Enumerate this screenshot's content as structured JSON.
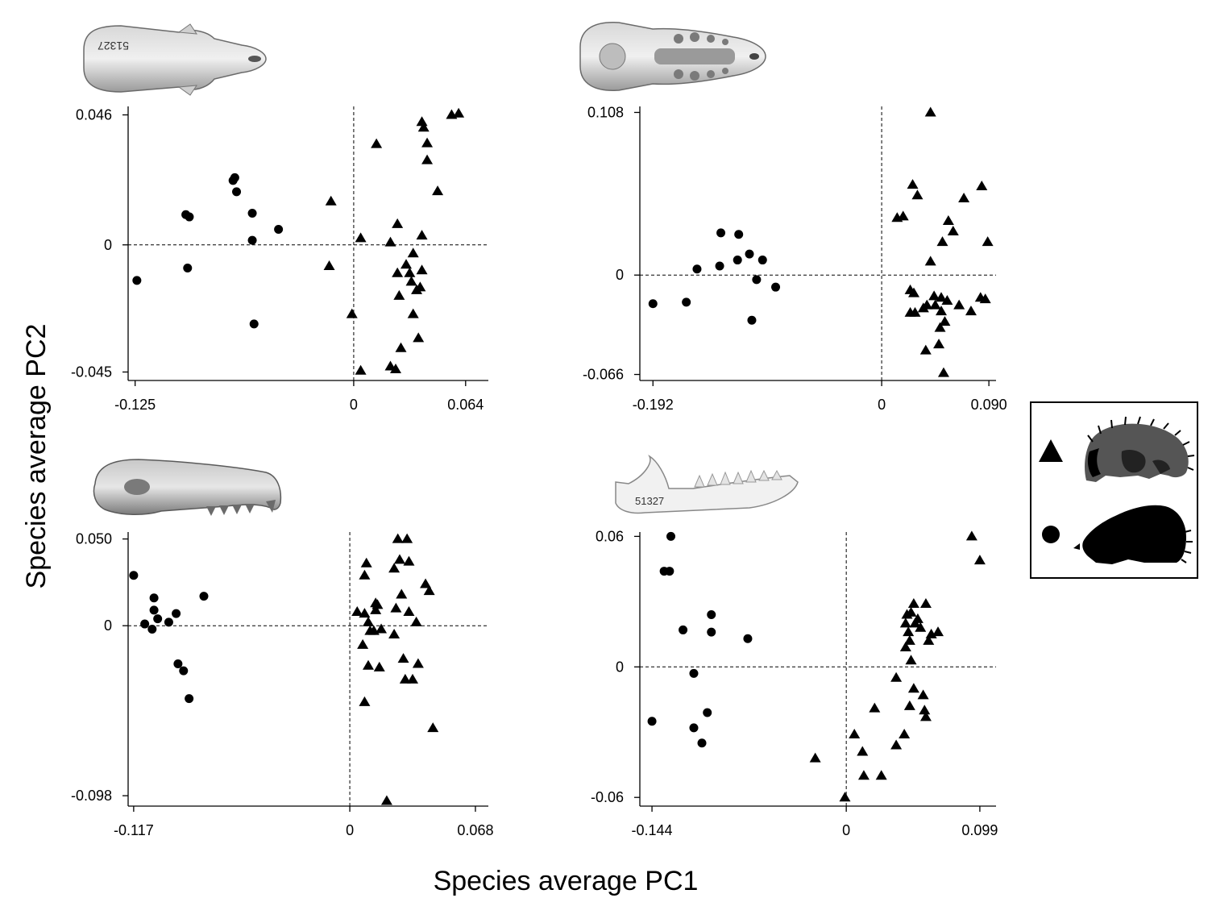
{
  "figure": {
    "xlabel": "Species average PC1",
    "ylabel": "Species average PC2"
  },
  "legend": {
    "placement": "right",
    "entries": [
      {
        "marker": "triangle",
        "icon": "furry-shrew-silhouette-icon",
        "color": "#555555"
      },
      {
        "marker": "circle",
        "icon": "mole-silhouette-icon",
        "color": "#000000"
      }
    ]
  },
  "skull_views": [
    {
      "panel": 0,
      "icon": "skull-dorsal-view-icon",
      "label": "51327"
    },
    {
      "panel": 1,
      "icon": "skull-ventral-view-icon",
      "label": ""
    },
    {
      "panel": 2,
      "icon": "skull-lateral-view-icon",
      "label": ""
    },
    {
      "panel": 3,
      "icon": "mandible-view-icon",
      "label": "51327"
    }
  ],
  "chart_data": [
    {
      "type": "scatter",
      "xlim": [
        -0.129,
        0.077
      ],
      "ylim": [
        -0.048,
        0.049
      ],
      "xticks": [
        {
          "v": -0.125,
          "label": "-0.125"
        },
        {
          "v": 0,
          "label": "0"
        },
        {
          "v": 0.064,
          "label": "0.064"
        }
      ],
      "yticks": [
        {
          "v": 0.046,
          "label": "0.046"
        },
        {
          "v": 0,
          "label": "0"
        },
        {
          "v": -0.045,
          "label": "-0.045"
        }
      ],
      "series": [
        {
          "marker": "circle",
          "points": [
            [
              -0.124,
              -0.0126
            ],
            [
              -0.096,
              0.0107
            ],
            [
              -0.094,
              0.0099
            ],
            [
              -0.095,
              -0.0082
            ],
            [
              -0.069,
              0.0228
            ],
            [
              -0.068,
              0.0238
            ],
            [
              -0.067,
              0.0188
            ],
            [
              -0.058,
              0.0112
            ],
            [
              -0.058,
              0.0016
            ],
            [
              -0.057,
              -0.028
            ],
            [
              -0.043,
              0.0055
            ]
          ]
        },
        {
          "marker": "triangle",
          "points": [
            [
              -0.013,
              0.0154
            ],
            [
              -0.014,
              -0.0075
            ],
            [
              -0.001,
              -0.0245
            ],
            [
              0.004,
              0.0024
            ],
            [
              0.004,
              -0.0445
            ],
            [
              0.013,
              0.0357
            ],
            [
              0.021,
              -0.043
            ],
            [
              0.021,
              0.0009
            ],
            [
              0.024,
              -0.044
            ],
            [
              0.025,
              0.0074
            ],
            [
              0.025,
              -0.01
            ],
            [
              0.026,
              -0.018
            ],
            [
              0.027,
              -0.0365
            ],
            [
              0.03,
              -0.007
            ],
            [
              0.032,
              -0.01
            ],
            [
              0.033,
              -0.013
            ],
            [
              0.034,
              -0.003
            ],
            [
              0.034,
              -0.0245
            ],
            [
              0.036,
              -0.016
            ],
            [
              0.037,
              -0.033
            ],
            [
              0.038,
              -0.015
            ],
            [
              0.039,
              -0.009
            ],
            [
              0.039,
              0.0033
            ],
            [
              0.039,
              0.0435
            ],
            [
              0.04,
              0.0415
            ],
            [
              0.042,
              0.036
            ],
            [
              0.042,
              0.03
            ],
            [
              0.048,
              0.019
            ],
            [
              0.056,
              0.046
            ],
            [
              0.06,
              0.0465
            ]
          ]
        }
      ]
    },
    {
      "type": "scatter",
      "xlim": [
        -0.203,
        0.096
      ],
      "ylim": [
        -0.07,
        0.112
      ],
      "xticks": [
        {
          "v": -0.192,
          "label": "-0.192"
        },
        {
          "v": 0,
          "label": "0"
        },
        {
          "v": 0.09,
          "label": "0.090"
        }
      ],
      "yticks": [
        {
          "v": 0.108,
          "label": "0.108"
        },
        {
          "v": 0,
          "label": "0"
        },
        {
          "v": -0.066,
          "label": "-0.066"
        }
      ],
      "series": [
        {
          "marker": "circle",
          "points": [
            [
              -0.192,
              -0.019
            ],
            [
              -0.164,
              -0.018
            ],
            [
              -0.155,
              0.004
            ],
            [
              -0.135,
              0.028
            ],
            [
              -0.136,
              0.006
            ],
            [
              -0.12,
              0.027
            ],
            [
              -0.121,
              0.01
            ],
            [
              -0.111,
              0.014
            ],
            [
              -0.109,
              -0.03
            ],
            [
              -0.105,
              -0.003
            ],
            [
              -0.1,
              0.01
            ],
            [
              -0.089,
              -0.008
            ]
          ]
        },
        {
          "marker": "triangle",
          "points": [
            [
              0.013,
              0.038
            ],
            [
              0.018,
              0.039
            ],
            [
              0.024,
              -0.01
            ],
            [
              0.024,
              -0.025
            ],
            [
              0.026,
              0.06
            ],
            [
              0.027,
              -0.012
            ],
            [
              0.028,
              -0.025
            ],
            [
              0.03,
              0.053
            ],
            [
              0.035,
              -0.022
            ],
            [
              0.037,
              -0.05
            ],
            [
              0.038,
              -0.02
            ],
            [
              0.041,
              0.009
            ],
            [
              0.041,
              0.108
            ],
            [
              0.044,
              -0.014
            ],
            [
              0.045,
              -0.02
            ],
            [
              0.048,
              -0.046
            ],
            [
              0.049,
              -0.035
            ],
            [
              0.05,
              -0.015
            ],
            [
              0.05,
              -0.024
            ],
            [
              0.051,
              0.022
            ],
            [
              0.052,
              -0.065
            ],
            [
              0.053,
              -0.031
            ],
            [
              0.055,
              -0.017
            ],
            [
              0.056,
              0.036
            ],
            [
              0.06,
              0.029
            ],
            [
              0.065,
              -0.02
            ],
            [
              0.069,
              0.051
            ],
            [
              0.075,
              -0.024
            ],
            [
              0.083,
              -0.015
            ],
            [
              0.084,
              0.059
            ],
            [
              0.087,
              -0.016
            ],
            [
              0.089,
              0.022
            ]
          ]
        }
      ]
    },
    {
      "type": "scatter",
      "xlim": [
        -0.12,
        0.075
      ],
      "ylim": [
        -0.104,
        0.054
      ],
      "xticks": [
        {
          "v": -0.117,
          "label": "-0.117"
        },
        {
          "v": 0,
          "label": "0"
        },
        {
          "v": 0.068,
          "label": "0.068"
        }
      ],
      "yticks": [
        {
          "v": 0.05,
          "label": "0.050"
        },
        {
          "v": 0,
          "label": "0"
        },
        {
          "v": -0.098,
          "label": "-0.098"
        }
      ],
      "series": [
        {
          "marker": "circle",
          "points": [
            [
              -0.117,
              0.029
            ],
            [
              -0.111,
              0.001
            ],
            [
              -0.107,
              -0.002
            ],
            [
              -0.106,
              0.016
            ],
            [
              -0.106,
              0.009
            ],
            [
              -0.104,
              0.004
            ],
            [
              -0.098,
              0.002
            ],
            [
              -0.094,
              0.007
            ],
            [
              -0.093,
              -0.022
            ],
            [
              -0.09,
              -0.026
            ],
            [
              -0.087,
              -0.042
            ],
            [
              -0.079,
              0.017
            ]
          ]
        },
        {
          "marker": "triangle",
          "points": [
            [
              0.004,
              0.008
            ],
            [
              0.007,
              -0.011
            ],
            [
              0.008,
              0.029
            ],
            [
              0.008,
              0.007
            ],
            [
              0.008,
              -0.044
            ],
            [
              0.009,
              0.036
            ],
            [
              0.01,
              0.002
            ],
            [
              0.01,
              -0.023
            ],
            [
              0.011,
              -0.003
            ],
            [
              0.013,
              -0.003
            ],
            [
              0.014,
              0.013
            ],
            [
              0.014,
              0.009
            ],
            [
              0.015,
              0.012
            ],
            [
              0.016,
              -0.024
            ],
            [
              0.017,
              -0.002
            ],
            [
              0.02,
              -0.101
            ],
            [
              0.024,
              0.033
            ],
            [
              0.024,
              -0.005
            ],
            [
              0.025,
              0.01
            ],
            [
              0.026,
              0.05
            ],
            [
              0.027,
              0.038
            ],
            [
              0.028,
              0.018
            ],
            [
              0.029,
              -0.019
            ],
            [
              0.03,
              -0.031
            ],
            [
              0.031,
              0.05
            ],
            [
              0.032,
              0.037
            ],
            [
              0.032,
              0.008
            ],
            [
              0.034,
              -0.031
            ],
            [
              0.036,
              0.002
            ],
            [
              0.037,
              -0.022
            ],
            [
              0.041,
              0.024
            ],
            [
              0.043,
              0.02
            ],
            [
              0.045,
              -0.059
            ]
          ]
        }
      ]
    },
    {
      "type": "scatter",
      "xlim": [
        -0.153,
        0.111
      ],
      "ylim": [
        -0.064,
        0.062
      ],
      "xticks": [
        {
          "v": -0.144,
          "label": "-0.144"
        },
        {
          "v": 0,
          "label": "0"
        },
        {
          "v": 0.099,
          "label": "0.099"
        }
      ],
      "yticks": [
        {
          "v": 0.06,
          "label": "0.06"
        },
        {
          "v": 0,
          "label": "0"
        },
        {
          "v": -0.06,
          "label": "-0.06"
        }
      ],
      "series": [
        {
          "marker": "circle",
          "points": [
            [
              -0.144,
              -0.025
            ],
            [
              -0.135,
              0.044
            ],
            [
              -0.131,
              0.044
            ],
            [
              -0.13,
              0.06
            ],
            [
              -0.121,
              0.017
            ],
            [
              -0.113,
              -0.003
            ],
            [
              -0.113,
              -0.028
            ],
            [
              -0.107,
              -0.035
            ],
            [
              -0.103,
              -0.021
            ],
            [
              -0.1,
              0.024
            ],
            [
              -0.1,
              0.016
            ],
            [
              -0.073,
              0.013
            ]
          ]
        },
        {
          "marker": "triangle",
          "points": [
            [
              -0.023,
              -0.042
            ],
            [
              -0.001,
              -0.06
            ],
            [
              0.006,
              -0.031
            ],
            [
              0.012,
              -0.039
            ],
            [
              0.013,
              -0.05
            ],
            [
              0.021,
              -0.019
            ],
            [
              0.026,
              -0.05
            ],
            [
              0.037,
              -0.036
            ],
            [
              0.037,
              -0.005
            ],
            [
              0.043,
              -0.031
            ],
            [
              0.044,
              0.009
            ],
            [
              0.044,
              0.02
            ],
            [
              0.045,
              0.024
            ],
            [
              0.046,
              0.016
            ],
            [
              0.047,
              -0.018
            ],
            [
              0.047,
              0.012
            ],
            [
              0.048,
              0.003
            ],
            [
              0.048,
              0.025
            ],
            [
              0.05,
              0.029
            ],
            [
              0.05,
              -0.01
            ],
            [
              0.051,
              0.02
            ],
            [
              0.053,
              0.022
            ],
            [
              0.055,
              0.018
            ],
            [
              0.057,
              -0.013
            ],
            [
              0.058,
              -0.02
            ],
            [
              0.059,
              -0.023
            ],
            [
              0.059,
              0.029
            ],
            [
              0.061,
              0.012
            ],
            [
              0.063,
              0.015
            ],
            [
              0.068,
              0.016
            ],
            [
              0.093,
              0.06
            ],
            [
              0.099,
              0.049
            ]
          ]
        }
      ]
    }
  ]
}
